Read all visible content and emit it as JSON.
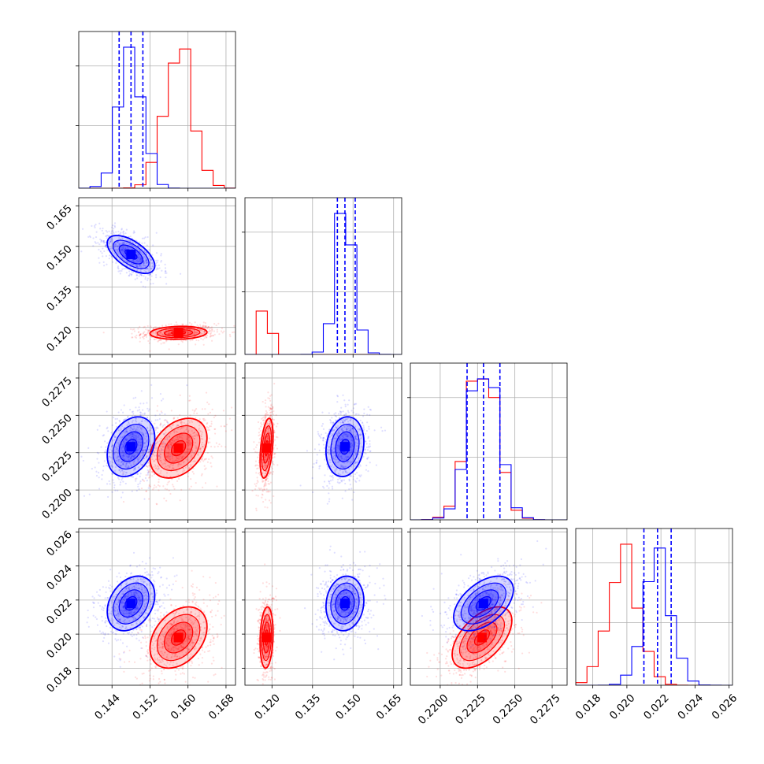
{
  "chart_data": {
    "type": "corner",
    "grid": true,
    "colors": {
      "blue": "#0000ff",
      "red": "#ff0000"
    },
    "parameters": [
      {
        "range": [
          0.137,
          0.17
        ],
        "ticks": [
          "0.144",
          "0.152",
          "0.160",
          "0.168"
        ],
        "blue": {
          "median": 0.148,
          "q16": 0.1455,
          "q84": 0.1505,
          "sd": 0.0025
        },
        "red": {
          "median": 0.158,
          "sd": 0.003
        }
      },
      {
        "range": [
          0.11,
          0.168
        ],
        "ticks": [
          "0.120",
          "0.135",
          "0.150",
          "0.165"
        ],
        "blue": {
          "median": 0.147,
          "q16": 0.1442,
          "q84": 0.1508,
          "sd": 0.0035
        },
        "red": {
          "median": 0.118,
          "sd": 0.0012
        }
      },
      {
        "range": [
          0.218,
          0.2285
        ],
        "ticks": [
          "0.2200",
          "0.2225",
          "0.2250",
          "0.2275"
        ],
        "blue": {
          "median": 0.2229,
          "q16": 0.2218,
          "q84": 0.224,
          "sd": 0.001
        },
        "red": {
          "median": 0.2228,
          "sd": 0.001
        }
      },
      {
        "range": [
          0.017,
          0.0262
        ],
        "ticks": [
          "0.018",
          "0.020",
          "0.022",
          "0.024",
          "0.026"
        ],
        "blue": {
          "median": 0.0218,
          "q16": 0.021,
          "q84": 0.0226,
          "sd": 0.0008
        },
        "red": {
          "median": 0.0198,
          "sd": 0.0009
        }
      }
    ],
    "ylabel_ticks": {
      "1": [
        "0.120",
        "0.135",
        "0.150",
        "0.165"
      ],
      "2": [
        "0.2200",
        "0.2225",
        "0.2250",
        "0.2275"
      ],
      "3": [
        "0.018",
        "0.020",
        "0.022",
        "0.024",
        "0.026"
      ]
    },
    "correlations": {
      "blue": {
        "0-1": -0.6,
        "0-2": 0.3,
        "0-3": 0.3,
        "1-2": 0.15,
        "1-3": 0.1,
        "2-3": 0.5
      },
      "red": {
        "0-1": 0.1,
        "0-2": 0.35,
        "0-3": 0.35,
        "1-2": 0.4,
        "1-3": 0.15,
        "2-3": 0.55
      }
    }
  }
}
